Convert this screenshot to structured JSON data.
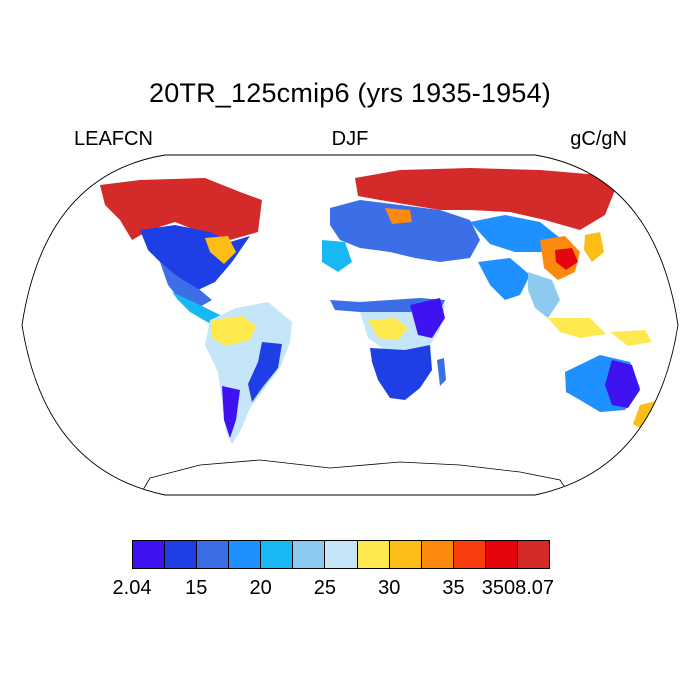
{
  "title": "20TR_125cmip6 (yrs 1935-1954)",
  "labels": {
    "left": "LEAFCN",
    "center": "DJF",
    "right": "gC/gN"
  },
  "colorbar": {
    "colors": [
      "#3f12f2",
      "#1f3fe6",
      "#3c6ee8",
      "#1e90ff",
      "#18b8f4",
      "#8dcaf0",
      "#c5e6f8",
      "#fde94e",
      "#fbbd16",
      "#fb8a0e",
      "#f93e0e",
      "#e5050d",
      "#d52a2a"
    ],
    "ticks": [
      "2.04",
      "15",
      "20",
      "25",
      "30",
      "35",
      "3508.07"
    ]
  },
  "chart_data": {
    "type": "heatmap",
    "projection": "Robinson",
    "variable": "LEAFCN",
    "season": "DJF",
    "units": "gC/gN",
    "period": "1935-1954",
    "color_levels": [
      "2.04",
      "15",
      "20",
      "25",
      "30",
      "35",
      "3508.07"
    ],
    "regions": [
      {
        "name": "North America boreal / Canada",
        "class": "highest"
      },
      {
        "name": "Eastern United States",
        "class": "low"
      },
      {
        "name": "Mexico and Central America",
        "class": "low-mid"
      },
      {
        "name": "Amazon basin",
        "class": "mid-high"
      },
      {
        "name": "Southern South America",
        "class": "low"
      },
      {
        "name": "Europe",
        "class": "low-mid"
      },
      {
        "name": "Siberia / northern Eurasia",
        "class": "highest"
      },
      {
        "name": "Central Africa",
        "class": "mid-high"
      },
      {
        "name": "Southern Africa",
        "class": "low"
      },
      {
        "name": "East / Southeast Asia",
        "class": "mixed"
      },
      {
        "name": "Australia",
        "class": "low"
      },
      {
        "name": "New Zealand",
        "class": "mid"
      }
    ]
  }
}
